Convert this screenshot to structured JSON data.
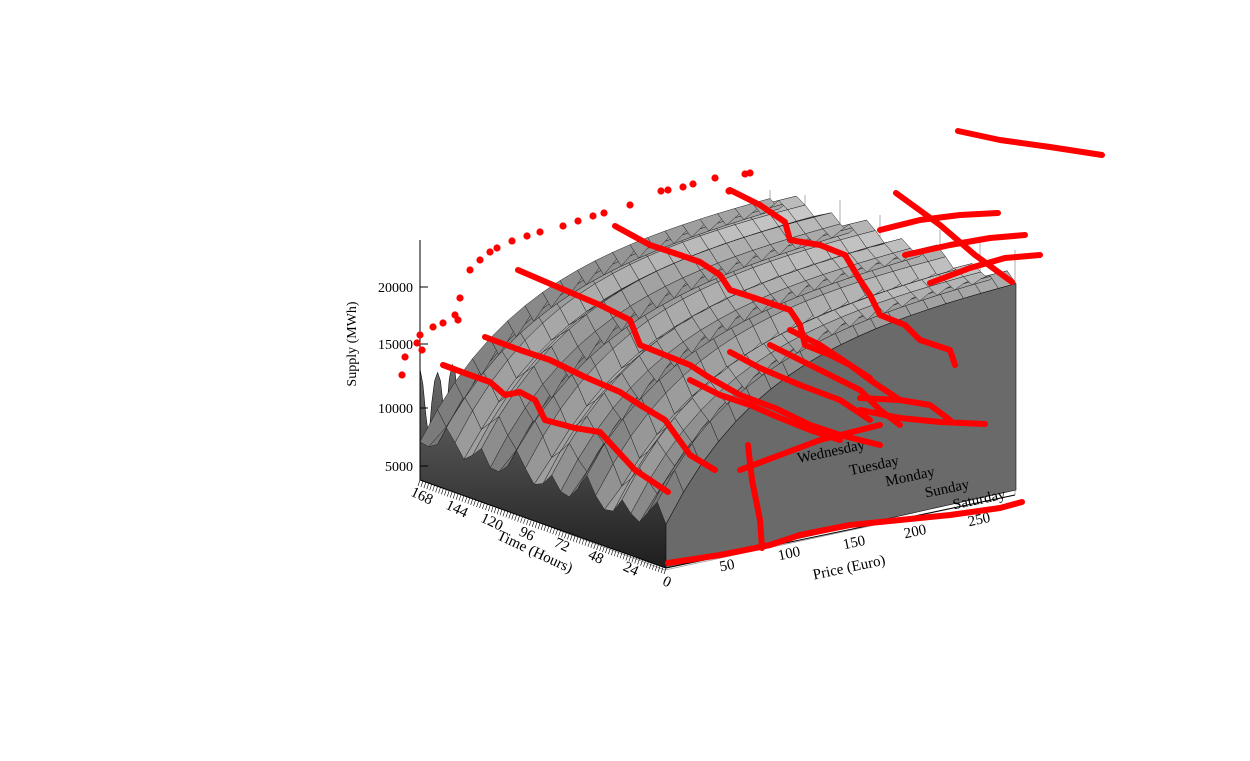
{
  "chart_data": {
    "type": "surface",
    "z_axis": {
      "label": "Supply (MWh)",
      "ticks": [
        5000,
        10000,
        15000,
        20000
      ]
    },
    "time_axis": {
      "label": "Time (Hours)",
      "ticks": [
        168,
        144,
        120,
        96,
        72,
        48,
        24,
        0
      ]
    },
    "price_axis": {
      "label": "Price (Euro)",
      "ticks": [
        50,
        100,
        150,
        200,
        250
      ]
    },
    "day_labels": [
      "Wednesday",
      "Tuesday",
      "Monday",
      "Sunday",
      "Saturday"
    ],
    "surface_color": "#9a9a9a",
    "annotation_color": "#ff0000"
  }
}
